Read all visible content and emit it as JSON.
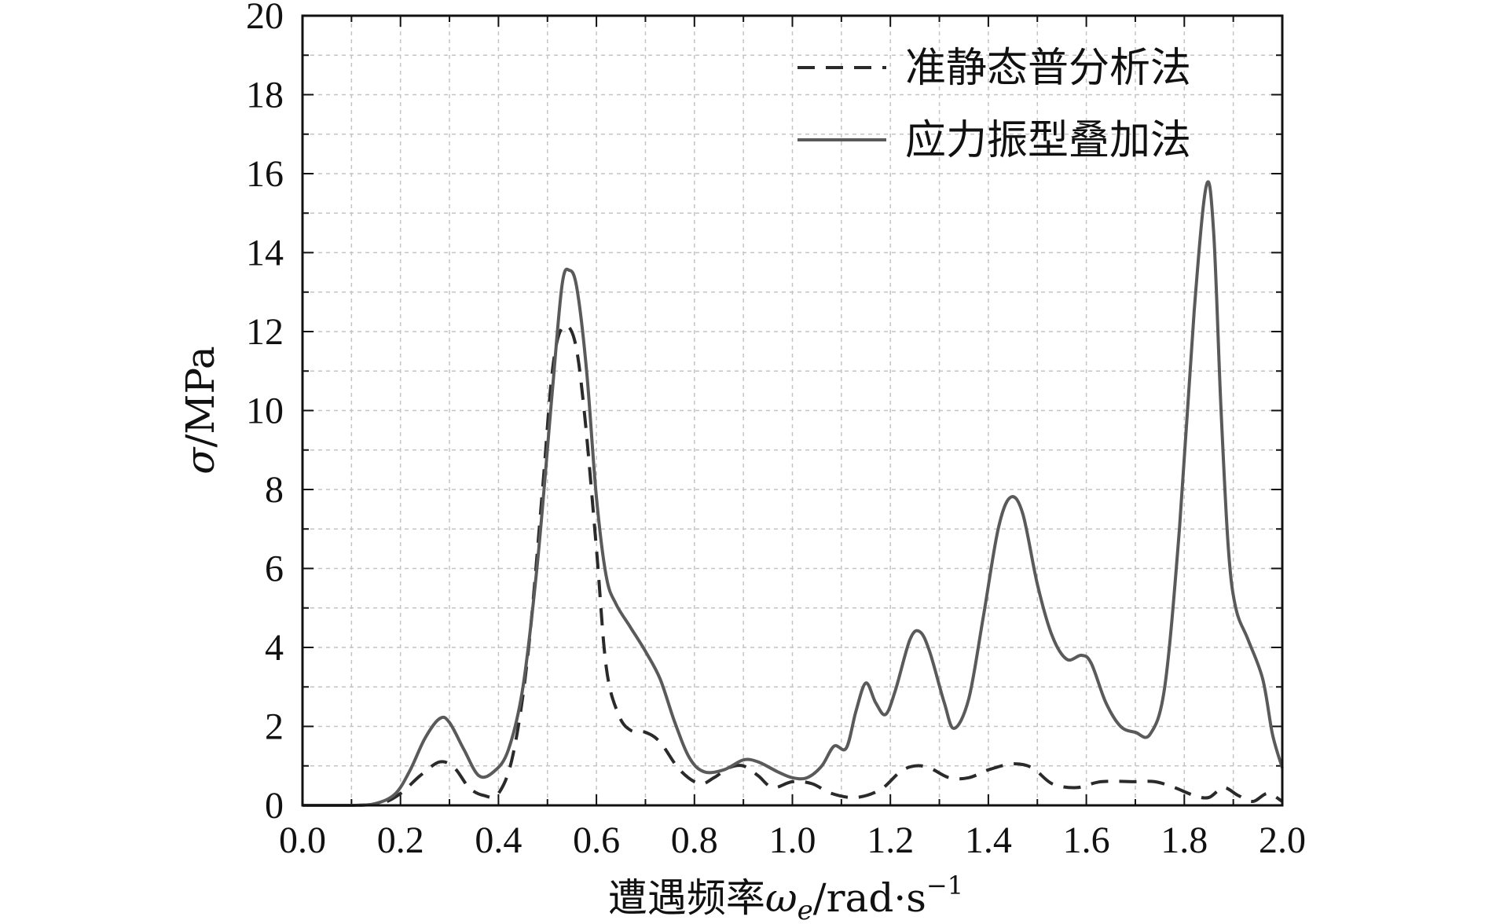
{
  "chart_data": {
    "type": "line",
    "xlabel": {
      "prefix": "遭遇频率",
      "symbol": "ω",
      "subscript": "e",
      "unit": "/rad·s",
      "superscript": "−1"
    },
    "ylabel": {
      "symbol": "σ",
      "unit": "/MPa"
    },
    "xlim": [
      0.0,
      2.0
    ],
    "ylim": [
      0,
      20
    ],
    "x_ticks": [
      "0.0",
      "0.2",
      "0.4",
      "0.6",
      "0.8",
      "1.0",
      "1.2",
      "1.4",
      "1.6",
      "1.8",
      "2.0"
    ],
    "y_ticks": [
      "0",
      "2",
      "4",
      "6",
      "8",
      "10",
      "12",
      "14",
      "16",
      "18",
      "20"
    ],
    "grid": true,
    "legend_position": "top-right",
    "series": [
      {
        "name": "准静态普分析法",
        "style": "dashed",
        "color": "#2a2a2a",
        "points": [
          [
            0.0,
            0.0
          ],
          [
            0.1,
            0.0
          ],
          [
            0.16,
            0.05
          ],
          [
            0.2,
            0.3
          ],
          [
            0.24,
            0.75
          ],
          [
            0.28,
            1.1
          ],
          [
            0.31,
            0.95
          ],
          [
            0.34,
            0.45
          ],
          [
            0.37,
            0.25
          ],
          [
            0.4,
            0.3
          ],
          [
            0.43,
            1.3
          ],
          [
            0.46,
            3.8
          ],
          [
            0.49,
            8.0
          ],
          [
            0.51,
            11.0
          ],
          [
            0.53,
            12.1
          ],
          [
            0.555,
            11.8
          ],
          [
            0.575,
            10.0
          ],
          [
            0.6,
            6.5
          ],
          [
            0.62,
            3.5
          ],
          [
            0.645,
            2.3
          ],
          [
            0.67,
            1.9
          ],
          [
            0.7,
            1.85
          ],
          [
            0.73,
            1.6
          ],
          [
            0.77,
            0.9
          ],
          [
            0.81,
            0.55
          ],
          [
            0.84,
            0.7
          ],
          [
            0.87,
            0.95
          ],
          [
            0.9,
            1.0
          ],
          [
            0.93,
            0.75
          ],
          [
            0.96,
            0.45
          ],
          [
            1.0,
            0.6
          ],
          [
            1.04,
            0.55
          ],
          [
            1.08,
            0.3
          ],
          [
            1.13,
            0.2
          ],
          [
            1.18,
            0.4
          ],
          [
            1.22,
            0.85
          ],
          [
            1.25,
            1.0
          ],
          [
            1.28,
            0.95
          ],
          [
            1.32,
            0.7
          ],
          [
            1.36,
            0.7
          ],
          [
            1.4,
            0.9
          ],
          [
            1.45,
            1.05
          ],
          [
            1.49,
            0.95
          ],
          [
            1.53,
            0.55
          ],
          [
            1.58,
            0.45
          ],
          [
            1.63,
            0.6
          ],
          [
            1.7,
            0.6
          ],
          [
            1.74,
            0.6
          ],
          [
            1.78,
            0.45
          ],
          [
            1.82,
            0.25
          ],
          [
            1.85,
            0.2
          ],
          [
            1.88,
            0.45
          ],
          [
            1.91,
            0.25
          ],
          [
            1.94,
            0.1
          ],
          [
            1.97,
            0.3
          ],
          [
            2.0,
            0.1
          ]
        ]
      },
      {
        "name": "应力振型叠加法",
        "style": "solid",
        "color": "#5a5a5a",
        "points": [
          [
            0.0,
            0.0
          ],
          [
            0.1,
            0.0
          ],
          [
            0.15,
            0.05
          ],
          [
            0.19,
            0.3
          ],
          [
            0.22,
            0.9
          ],
          [
            0.25,
            1.7
          ],
          [
            0.28,
            2.2
          ],
          [
            0.3,
            2.1
          ],
          [
            0.33,
            1.4
          ],
          [
            0.36,
            0.75
          ],
          [
            0.39,
            0.85
          ],
          [
            0.42,
            1.4
          ],
          [
            0.45,
            3.0
          ],
          [
            0.48,
            6.2
          ],
          [
            0.51,
            10.5
          ],
          [
            0.53,
            13.2
          ],
          [
            0.545,
            13.55
          ],
          [
            0.56,
            13.1
          ],
          [
            0.58,
            11.0
          ],
          [
            0.6,
            7.8
          ],
          [
            0.62,
            5.8
          ],
          [
            0.64,
            5.1
          ],
          [
            0.67,
            4.5
          ],
          [
            0.7,
            3.9
          ],
          [
            0.73,
            3.2
          ],
          [
            0.76,
            2.1
          ],
          [
            0.79,
            1.2
          ],
          [
            0.82,
            0.85
          ],
          [
            0.86,
            0.9
          ],
          [
            0.9,
            1.15
          ],
          [
            0.93,
            1.1
          ],
          [
            0.97,
            0.85
          ],
          [
            1.0,
            0.7
          ],
          [
            1.03,
            0.7
          ],
          [
            1.06,
            1.0
          ],
          [
            1.085,
            1.5
          ],
          [
            1.11,
            1.45
          ],
          [
            1.13,
            2.4
          ],
          [
            1.15,
            3.1
          ],
          [
            1.17,
            2.6
          ],
          [
            1.19,
            2.3
          ],
          [
            1.21,
            2.9
          ],
          [
            1.24,
            4.2
          ],
          [
            1.26,
            4.4
          ],
          [
            1.28,
            3.9
          ],
          [
            1.31,
            2.6
          ],
          [
            1.33,
            1.95
          ],
          [
            1.36,
            2.7
          ],
          [
            1.39,
            4.8
          ],
          [
            1.42,
            7.0
          ],
          [
            1.445,
            7.8
          ],
          [
            1.47,
            7.4
          ],
          [
            1.5,
            5.6
          ],
          [
            1.53,
            4.3
          ],
          [
            1.56,
            3.7
          ],
          [
            1.59,
            3.8
          ],
          [
            1.61,
            3.6
          ],
          [
            1.64,
            2.6
          ],
          [
            1.67,
            2.0
          ],
          [
            1.7,
            1.85
          ],
          [
            1.73,
            1.8
          ],
          [
            1.76,
            3.0
          ],
          [
            1.79,
            7.0
          ],
          [
            1.82,
            12.5
          ],
          [
            1.845,
            15.7
          ],
          [
            1.86,
            14.5
          ],
          [
            1.875,
            10.0
          ],
          [
            1.89,
            6.5
          ],
          [
            1.905,
            5.0
          ],
          [
            1.93,
            4.2
          ],
          [
            1.96,
            3.2
          ],
          [
            1.98,
            1.8
          ],
          [
            2.0,
            0.95
          ]
        ]
      }
    ]
  }
}
